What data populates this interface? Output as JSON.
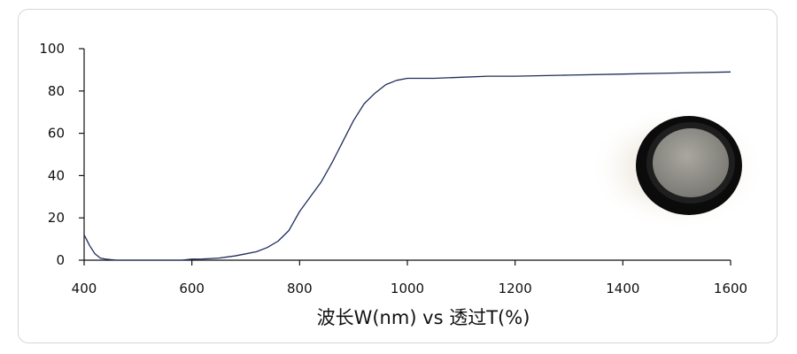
{
  "chart_data": {
    "type": "line",
    "xlabel": "波长W(nm) vs 透过T(%)",
    "ylabel": "",
    "xlim": [
      400,
      1600
    ],
    "ylim": [
      0,
      100
    ],
    "xticks": [
      "400",
      "600",
      "800",
      "1000",
      "1200",
      "1400",
      "1600"
    ],
    "yticks": [
      "0",
      "20",
      "40",
      "60",
      "80",
      "100"
    ],
    "grid": false,
    "colors": {
      "line": "#1f2d5a",
      "axis": "#111111"
    },
    "series": [
      {
        "x": [
          400,
          410,
          420,
          430,
          440,
          460,
          500,
          550,
          580,
          600,
          620,
          650,
          680,
          700,
          720,
          740,
          760,
          780,
          800,
          820,
          840,
          860,
          880,
          900,
          920,
          940,
          960,
          980,
          1000,
          1050,
          1100,
          1150,
          1200,
          1300,
          1400,
          1500,
          1600
        ],
        "values": [
          12,
          7,
          3,
          1,
          0.5,
          0,
          0,
          0,
          0,
          0.5,
          0.6,
          1,
          2,
          3,
          4,
          6,
          9,
          14,
          23,
          30,
          37,
          46,
          56,
          66,
          74,
          79,
          83,
          85,
          86,
          86,
          86.5,
          87,
          87,
          87.5,
          88,
          88.5,
          89
        ]
      }
    ]
  },
  "decor": {
    "filter_image": "circular-filter-lens-photo"
  }
}
